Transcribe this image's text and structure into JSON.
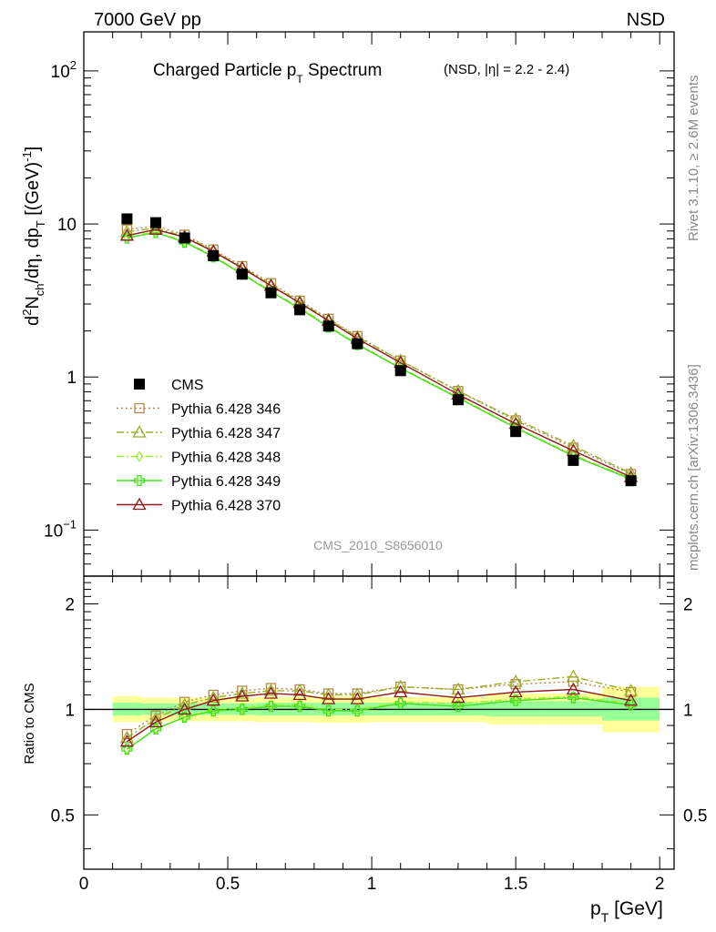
{
  "header": {
    "left": "7000 GeV pp",
    "right": "NSD"
  },
  "side": {
    "rivet": "Rivet 3.1.10, ≥ 2.6M events",
    "mcplots": "mcplots.cern.ch [arXiv:1306.3436]"
  },
  "colors": {
    "cms": "#000000",
    "p346": "#b5884a",
    "p347": "#9aad22",
    "p348": "#9eef2e",
    "p349": "#44dd22",
    "p370": "#8b1a1a",
    "band_outer": "#ffff99",
    "band_inner": "#99ff99"
  },
  "chart_data": [
    {
      "type": "line",
      "title_main": "Charged Particle p",
      "title_sub": "T",
      "title_main2": " Spectrum",
      "title_extra": "(NSD, |η| = 2.2 - 2.4)",
      "ylabel": "d²Nₕ/dη, dpₜ [(GeV)⁻¹]",
      "ylabel_parts": {
        "d": "d",
        "sup2": "2",
        "N": "N",
        "ch": "ch",
        "rest": "/dη, dp",
        "T": "T",
        "unit": " [(GeV)",
        "sup": "-1",
        "close": "]"
      },
      "yscale": "log",
      "ylim": [
        0.05,
        180
      ],
      "xlim": [
        0,
        2.05
      ],
      "yticks": [
        {
          "label": "10",
          "sup": "2"
        },
        {
          "label": "10",
          "sup": ""
        },
        {
          "label": "1",
          "sup": ""
        },
        {
          "label": "10",
          "sup": "−1"
        }
      ],
      "watermark": "CMS_2010_S8656010",
      "x": [
        0.15,
        0.25,
        0.35,
        0.45,
        0.55,
        0.65,
        0.75,
        0.85,
        0.95,
        1.1,
        1.3,
        1.5,
        1.7,
        1.9
      ],
      "legend_position": "center-left",
      "series": [
        {
          "name": "CMS",
          "marker": "square",
          "color_key": "cms",
          "values": [
            10.8,
            10.2,
            8.1,
            6.2,
            4.7,
            3.55,
            2.75,
            2.15,
            1.65,
            1.1,
            0.71,
            0.44,
            0.285,
            0.21
          ]
        },
        {
          "name": "Pythia 6.428 346",
          "marker": "open-square",
          "line": "dotted",
          "color_key": "p346",
          "values": [
            9.2,
            9.7,
            8.5,
            6.8,
            5.3,
            4.1,
            3.15,
            2.4,
            1.85,
            1.28,
            0.81,
            0.52,
            0.345,
            0.232
          ]
        },
        {
          "name": "Pythia 6.428 347",
          "marker": "open-triangle",
          "line": "dashdot",
          "color_key": "p347",
          "values": [
            8.9,
            9.4,
            8.3,
            6.7,
            5.2,
            4.0,
            3.1,
            2.37,
            1.83,
            1.28,
            0.81,
            0.53,
            0.355,
            0.235
          ]
        },
        {
          "name": "Pythia 6.428 348",
          "marker": "open-diamond",
          "line": "dashdot",
          "color_key": "p348",
          "values": [
            8.2,
            8.9,
            7.7,
            6.2,
            4.75,
            3.65,
            2.85,
            2.15,
            1.65,
            1.15,
            0.74,
            0.47,
            0.31,
            0.218
          ]
        },
        {
          "name": "Pythia 6.428 349",
          "marker": "open-cross",
          "line": "solid",
          "color_key": "p349",
          "values": [
            8.1,
            8.8,
            7.6,
            6.1,
            4.7,
            3.6,
            2.8,
            2.12,
            1.63,
            1.14,
            0.73,
            0.465,
            0.305,
            0.215
          ]
        },
        {
          "name": "Pythia 6.428 370",
          "marker": "open-triangle",
          "line": "solid",
          "color_key": "p370",
          "values": [
            8.4,
            9.2,
            8.2,
            6.6,
            5.15,
            3.95,
            3.05,
            2.33,
            1.78,
            1.24,
            0.77,
            0.495,
            0.33,
            0.222
          ]
        }
      ]
    },
    {
      "type": "line",
      "ylabel": "Ratio to CMS",
      "xlabel_main": "p",
      "xlabel_sub": "T",
      "xlabel_unit": " [GeV]",
      "xlim": [
        0,
        2.05
      ],
      "ylim": [
        0.35,
        2.4
      ],
      "yscale": "log",
      "yticks": [
        "2",
        "1",
        "0.5"
      ],
      "xticks": [
        "0",
        "0.5",
        "1",
        "1.5",
        "2"
      ],
      "x": [
        0.15,
        0.25,
        0.35,
        0.45,
        0.55,
        0.65,
        0.75,
        0.85,
        0.95,
        1.1,
        1.3,
        1.5,
        1.7,
        1.9
      ],
      "band_bins": [
        {
          "x0": 0.1,
          "x1": 0.2,
          "outer": [
            0.92,
            1.09
          ],
          "inner": [
            0.96,
            1.045
          ]
        },
        {
          "x0": 0.2,
          "x1": 0.3,
          "outer": [
            0.925,
            1.08
          ],
          "inner": [
            0.965,
            1.04
          ]
        },
        {
          "x0": 0.3,
          "x1": 0.4,
          "outer": [
            0.925,
            1.08
          ],
          "inner": [
            0.965,
            1.04
          ]
        },
        {
          "x0": 0.4,
          "x1": 0.5,
          "outer": [
            0.925,
            1.08
          ],
          "inner": [
            0.965,
            1.04
          ]
        },
        {
          "x0": 0.5,
          "x1": 0.6,
          "outer": [
            0.925,
            1.08
          ],
          "inner": [
            0.965,
            1.04
          ]
        },
        {
          "x0": 0.6,
          "x1": 0.7,
          "outer": [
            0.92,
            1.085
          ],
          "inner": [
            0.96,
            1.045
          ]
        },
        {
          "x0": 0.7,
          "x1": 0.8,
          "outer": [
            0.92,
            1.085
          ],
          "inner": [
            0.96,
            1.045
          ]
        },
        {
          "x0": 0.8,
          "x1": 0.9,
          "outer": [
            0.915,
            1.09
          ],
          "inner": [
            0.96,
            1.045
          ]
        },
        {
          "x0": 0.9,
          "x1": 1.0,
          "outer": [
            0.915,
            1.09
          ],
          "inner": [
            0.96,
            1.045
          ]
        },
        {
          "x0": 1.0,
          "x1": 1.2,
          "outer": [
            0.92,
            1.085
          ],
          "inner": [
            0.96,
            1.045
          ]
        },
        {
          "x0": 1.2,
          "x1": 1.4,
          "outer": [
            0.92,
            1.085
          ],
          "inner": [
            0.96,
            1.045
          ]
        },
        {
          "x0": 1.4,
          "x1": 1.6,
          "outer": [
            0.905,
            1.11
          ],
          "inner": [
            0.955,
            1.055
          ]
        },
        {
          "x0": 1.6,
          "x1": 1.8,
          "outer": [
            0.905,
            1.11
          ],
          "inner": [
            0.955,
            1.055
          ]
        },
        {
          "x0": 1.8,
          "x1": 2.0,
          "outer": [
            0.86,
            1.16
          ],
          "inner": [
            0.93,
            1.08
          ]
        }
      ],
      "series": [
        {
          "name": "Pythia 6.428 346",
          "color_key": "p346",
          "marker": "open-square",
          "line": "dotted",
          "values": [
            0.85,
            0.96,
            1.05,
            1.1,
            1.13,
            1.15,
            1.14,
            1.11,
            1.11,
            1.16,
            1.14,
            1.18,
            1.2,
            1.12
          ]
        },
        {
          "name": "Pythia 6.428 347",
          "color_key": "p347",
          "marker": "open-triangle",
          "line": "dashdot",
          "values": [
            0.83,
            0.94,
            1.03,
            1.08,
            1.11,
            1.13,
            1.13,
            1.1,
            1.1,
            1.16,
            1.14,
            1.2,
            1.24,
            1.13
          ]
        },
        {
          "name": "Pythia 6.428 348",
          "color_key": "p348",
          "marker": "open-diamond",
          "line": "dashdot",
          "values": [
            0.77,
            0.88,
            0.95,
            1.0,
            1.01,
            1.03,
            1.03,
            1.0,
            1.0,
            1.05,
            1.04,
            1.07,
            1.09,
            1.04
          ]
        },
        {
          "name": "Pythia 6.428 349",
          "color_key": "p349",
          "marker": "open-cross",
          "line": "solid",
          "values": [
            0.77,
            0.88,
            0.95,
            0.99,
            1.0,
            1.02,
            1.02,
            0.99,
            0.99,
            1.04,
            1.02,
            1.06,
            1.08,
            1.03
          ]
        },
        {
          "name": "Pythia 6.428 370",
          "color_key": "p370",
          "marker": "open-triangle",
          "line": "solid",
          "values": [
            0.81,
            0.92,
            1.0,
            1.06,
            1.09,
            1.11,
            1.1,
            1.07,
            1.07,
            1.12,
            1.08,
            1.12,
            1.14,
            1.06
          ]
        }
      ]
    }
  ]
}
